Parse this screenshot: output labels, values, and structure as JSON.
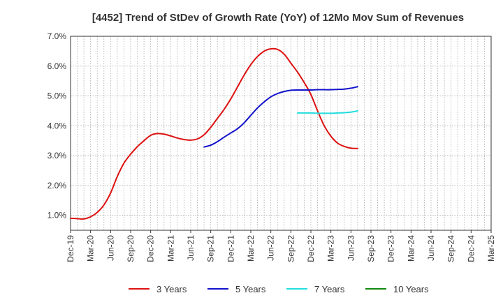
{
  "chart_data": {
    "type": "line",
    "title": "[4452]  Trend of StDev of Growth Rate (YoY) of 12Mo Mov Sum of Revenues",
    "xlabel": "",
    "ylabel": "",
    "ylim": [
      0.5,
      7.0
    ],
    "y_ticks": [
      1.0,
      2.0,
      3.0,
      4.0,
      5.0,
      6.0,
      7.0
    ],
    "y_tick_labels": [
      "1.0%",
      "2.0%",
      "3.0%",
      "4.0%",
      "5.0%",
      "6.0%",
      "7.0%"
    ],
    "x_ticks": [
      "Dec-19",
      "Mar-20",
      "Jun-20",
      "Sep-20",
      "Dec-20",
      "Mar-21",
      "Jun-21",
      "Sep-21",
      "Dec-21",
      "Mar-22",
      "Jun-22",
      "Sep-22",
      "Dec-22",
      "Mar-23",
      "Jun-23",
      "Sep-23",
      "Dec-23",
      "Mar-24",
      "Jun-24",
      "Sep-24",
      "Dec-24",
      "Mar-25"
    ],
    "grid": true,
    "legend_position": "bottom",
    "series": [
      {
        "name": "3 Years",
        "color": "#dd1111",
        "points": [
          [
            0,
            0.9
          ],
          [
            1,
            0.89
          ],
          [
            2,
            0.88
          ],
          [
            3,
            0.95
          ],
          [
            4,
            1.1
          ],
          [
            5,
            1.35
          ],
          [
            6,
            1.75
          ],
          [
            7,
            2.3
          ],
          [
            8,
            2.75
          ],
          [
            9,
            3.05
          ],
          [
            10,
            3.3
          ],
          [
            11,
            3.5
          ],
          [
            12,
            3.68
          ],
          [
            13,
            3.74
          ],
          [
            14,
            3.72
          ],
          [
            15,
            3.66
          ],
          [
            16,
            3.59
          ],
          [
            17,
            3.54
          ],
          [
            18,
            3.52
          ],
          [
            19,
            3.56
          ],
          [
            20,
            3.7
          ],
          [
            21,
            3.95
          ],
          [
            22,
            4.25
          ],
          [
            23,
            4.55
          ],
          [
            24,
            4.9
          ],
          [
            25,
            5.3
          ],
          [
            26,
            5.7
          ],
          [
            27,
            6.05
          ],
          [
            28,
            6.32
          ],
          [
            29,
            6.5
          ],
          [
            30,
            6.58
          ],
          [
            31,
            6.56
          ],
          [
            32,
            6.4
          ],
          [
            33,
            6.1
          ],
          [
            34,
            5.8
          ],
          [
            35,
            5.45
          ],
          [
            36,
            5.05
          ],
          [
            37,
            4.5
          ],
          [
            38,
            4.0
          ],
          [
            39,
            3.65
          ],
          [
            40,
            3.42
          ],
          [
            41,
            3.31
          ],
          [
            42,
            3.25
          ],
          [
            43,
            3.24
          ]
        ]
      },
      {
        "name": "5 Years",
        "color": "#1111cc",
        "points": [
          [
            20,
            3.29
          ],
          [
            21,
            3.35
          ],
          [
            22,
            3.47
          ],
          [
            23,
            3.62
          ],
          [
            24,
            3.76
          ],
          [
            25,
            3.9
          ],
          [
            26,
            4.1
          ],
          [
            27,
            4.35
          ],
          [
            28,
            4.6
          ],
          [
            29,
            4.8
          ],
          [
            30,
            4.97
          ],
          [
            31,
            5.08
          ],
          [
            32,
            5.15
          ],
          [
            33,
            5.19
          ],
          [
            34,
            5.2
          ],
          [
            35,
            5.2
          ],
          [
            36,
            5.2
          ],
          [
            37,
            5.21
          ],
          [
            38,
            5.21
          ],
          [
            39,
            5.21
          ],
          [
            40,
            5.22
          ],
          [
            41,
            5.23
          ],
          [
            42,
            5.26
          ],
          [
            43,
            5.31
          ]
        ]
      },
      {
        "name": "7 Years",
        "color": "#22dddd",
        "points": [
          [
            34,
            4.43
          ],
          [
            35,
            4.43
          ],
          [
            36,
            4.43
          ],
          [
            37,
            4.42
          ],
          [
            38,
            4.42
          ],
          [
            39,
            4.42
          ],
          [
            40,
            4.43
          ],
          [
            41,
            4.44
          ],
          [
            42,
            4.46
          ],
          [
            43,
            4.5
          ]
        ]
      },
      {
        "name": "10 Years",
        "color": "#118811",
        "points": []
      }
    ]
  }
}
